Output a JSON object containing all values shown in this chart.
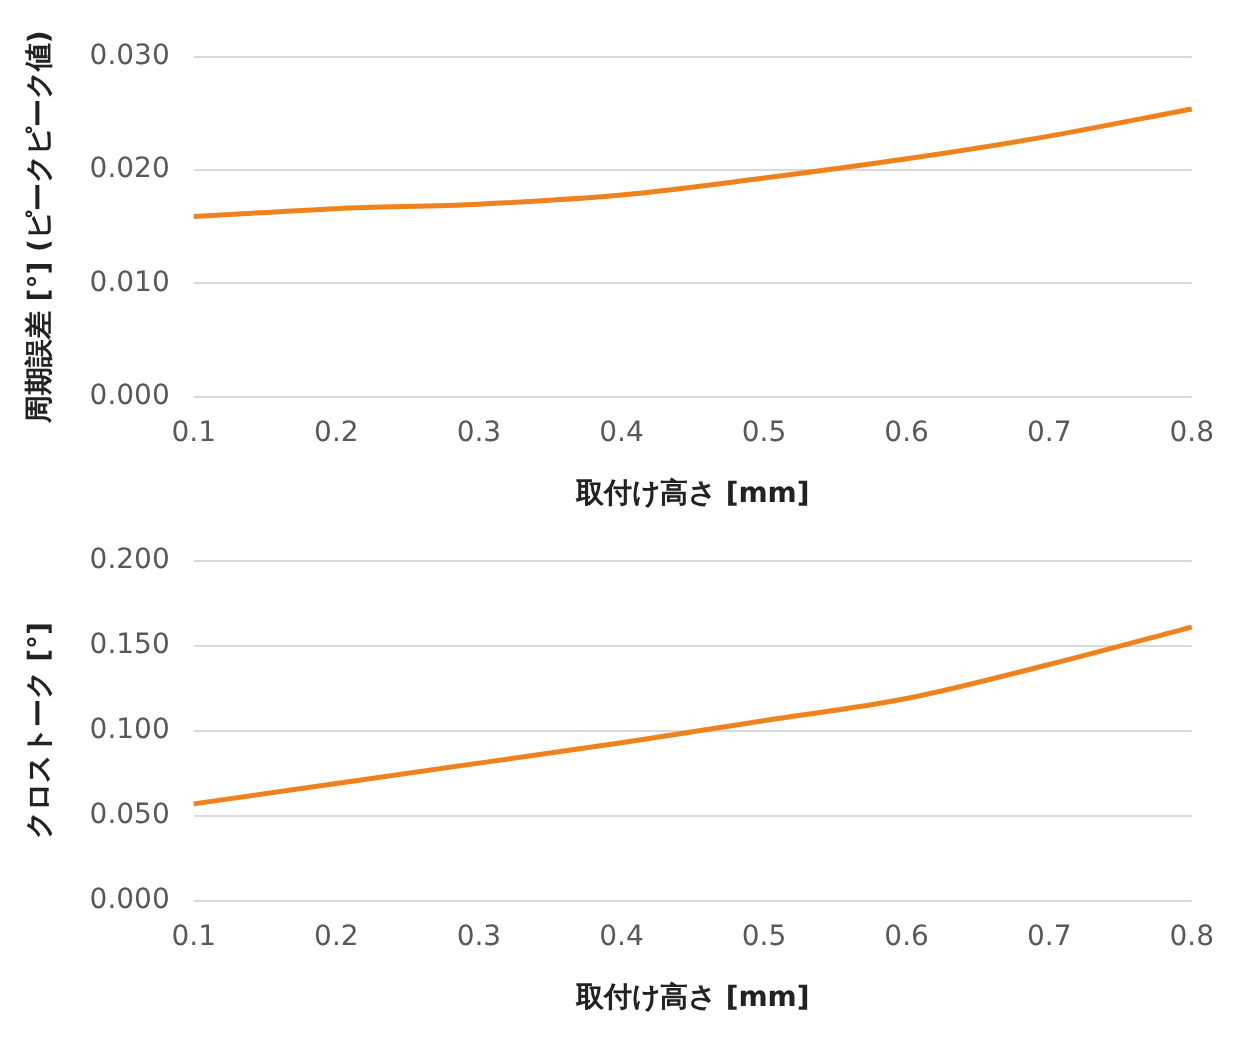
{
  "chart_data": [
    {
      "type": "line",
      "xlabel": "取付け高さ [mm]",
      "ylabel": "周期誤差 [°] (ピークピーク値)",
      "categories": [
        "0.1",
        "0.2",
        "0.3",
        "0.4",
        "0.5",
        "0.6",
        "0.7",
        "0.8"
      ],
      "series": [
        {
          "color": "#f0821e",
          "values": [
            0.0159,
            0.0166,
            0.017,
            0.0178,
            0.0193,
            0.021,
            0.023,
            0.0254
          ]
        }
      ],
      "ylim": [
        0,
        0.03
      ],
      "yticks": [
        {
          "value": 0,
          "label": "0.000"
        },
        {
          "value": 0.01,
          "label": "0.010"
        },
        {
          "value": 0.02,
          "label": "0.020"
        },
        {
          "value": 0.03,
          "label": "0.030"
        }
      ],
      "grid": "y",
      "legend": false,
      "marker": "none",
      "line_style": "solid"
    },
    {
      "type": "line",
      "xlabel": "取付け高さ [mm]",
      "ylabel": "クロストーク [°]",
      "categories": [
        "0.1",
        "0.2",
        "0.3",
        "0.4",
        "0.5",
        "0.6",
        "0.7",
        "0.8"
      ],
      "series": [
        {
          "color": "#f0821e",
          "values": [
            0.057,
            0.069,
            0.081,
            0.093,
            0.106,
            0.119,
            0.139,
            0.161
          ]
        }
      ],
      "ylim": [
        0,
        0.2
      ],
      "yticks": [
        {
          "value": 0,
          "label": "0.000"
        },
        {
          "value": 0.05,
          "label": "0.050"
        },
        {
          "value": 0.1,
          "label": "0.100"
        },
        {
          "value": 0.15,
          "label": "0.150"
        },
        {
          "value": 0.2,
          "label": "0.200"
        }
      ],
      "grid": "y",
      "legend": false,
      "marker": "none",
      "line_style": "solid"
    }
  ]
}
